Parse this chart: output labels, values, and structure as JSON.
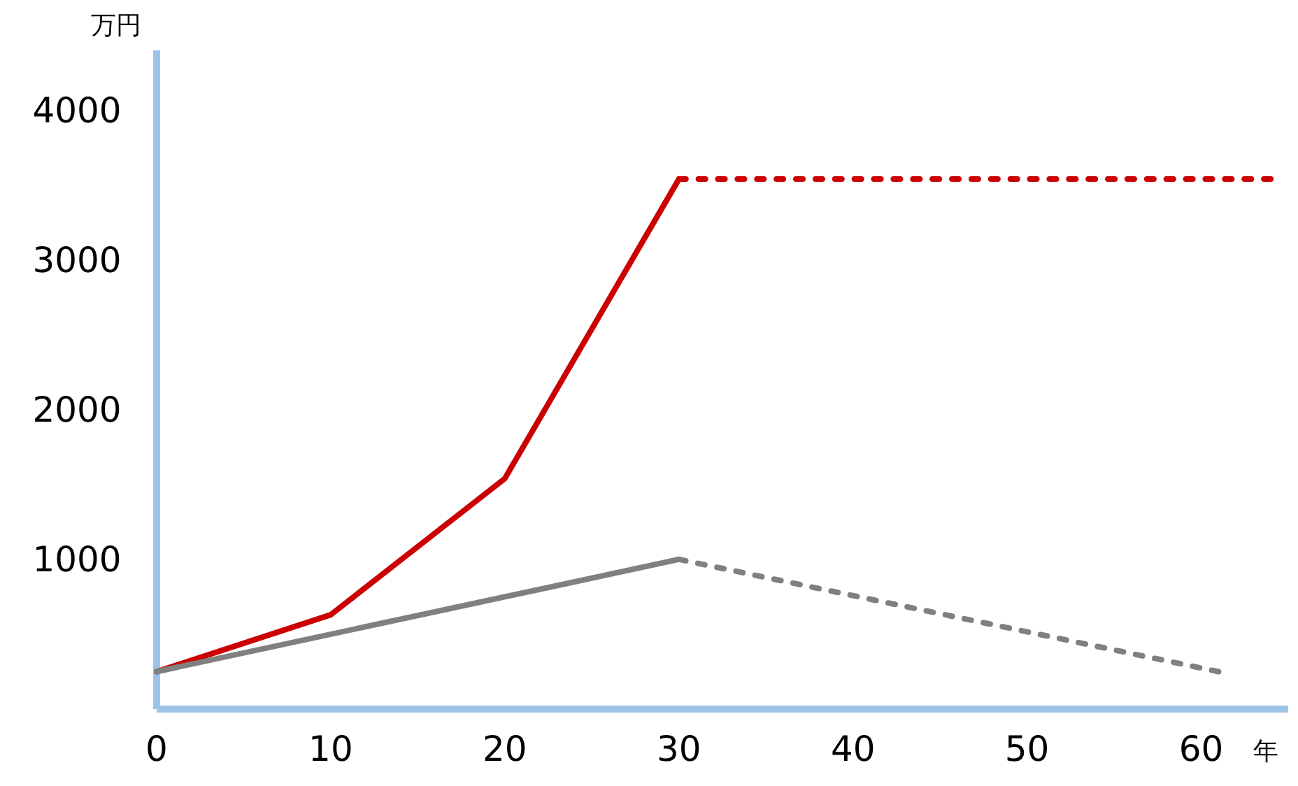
{
  "chart_data": {
    "type": "line",
    "xlabel": "年",
    "ylabel": "万円",
    "xlim": [
      0,
      65
    ],
    "xticks": [
      0,
      10,
      20,
      30,
      40,
      50,
      60
    ],
    "ylim": [
      0,
      4400
    ],
    "yticks": [
      1000,
      2000,
      3000,
      4000
    ],
    "grid": false,
    "marker": "none",
    "series": [
      {
        "color": "#cc0000",
        "line_style": "solid",
        "x": [
          0,
          10,
          20,
          30
        ],
        "values": [
          250,
          630,
          1540,
          3540
        ]
      },
      {
        "color": "#cc0000",
        "line_style": "dotted",
        "x": [
          30,
          64
        ],
        "values": [
          3540,
          3540
        ]
      },
      {
        "color": "#808080",
        "line_style": "solid",
        "x": [
          0,
          30
        ],
        "values": [
          250,
          1000
        ]
      },
      {
        "color": "#808080",
        "line_style": "dotted",
        "x": [
          30,
          61
        ],
        "values": [
          1000,
          250
        ]
      }
    ]
  }
}
